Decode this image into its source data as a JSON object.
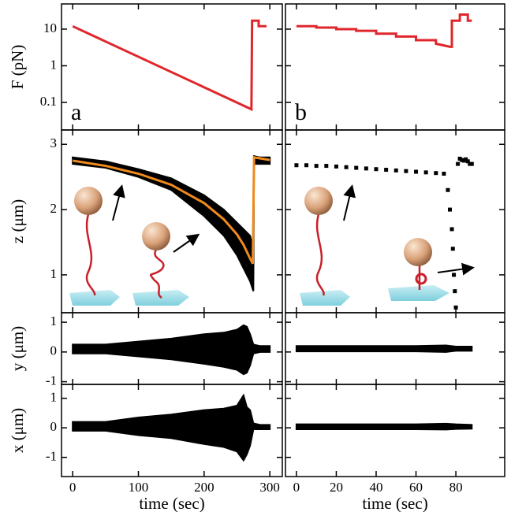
{
  "chart_data": [
    {
      "type": "line",
      "ylabel": "F (pN)",
      "panel_label": "a",
      "log_y": true,
      "xlim": [
        -17,
        319
      ],
      "ylim": [
        0.0177,
        48.7
      ],
      "yticks": [
        0.1,
        1,
        10
      ],
      "series": [
        {
          "kind": "line",
          "color": "#e0262b",
          "x": [
            0,
            272,
            273,
            283,
            283,
            295
          ],
          "values": [
            12,
            0.065,
            17,
            17,
            12,
            12
          ]
        }
      ]
    },
    {
      "type": "line",
      "panel_label": "b",
      "log_y": true,
      "xlim": [
        -5.5,
        104.5
      ],
      "ylim": [
        0.0177,
        48.7
      ],
      "series": [
        {
          "kind": "line",
          "color": "#e0262b",
          "x": [
            0,
            10,
            10,
            20,
            20,
            30,
            30,
            40,
            40,
            50,
            50,
            60,
            60,
            70,
            70,
            77,
            78,
            78,
            82,
            82,
            86,
            86,
            88
          ],
          "values": [
            12,
            12,
            11,
            11,
            10,
            10,
            9,
            9,
            7.5,
            7.5,
            6.3,
            6.3,
            5,
            5,
            4,
            3.3,
            3.3,
            17,
            17,
            25,
            25,
            17,
            17
          ]
        }
      ]
    },
    {
      "type": "line",
      "ylabel": "z (μm)",
      "xlim": [
        -17,
        319
      ],
      "ylim": [
        0.42,
        3.22
      ],
      "yticks": [
        1,
        2,
        3
      ],
      "series": [
        {
          "kind": "band",
          "color": "#000000",
          "x": [
            0,
            50,
            100,
            150,
            200,
            230,
            250,
            260,
            270,
            275,
            276,
            285,
            300
          ],
          "values": [
            2.8,
            2.74,
            2.62,
            2.48,
            2.22,
            2.0,
            1.8,
            1.7,
            1.6,
            1.4,
            2.82,
            2.8,
            2.8
          ],
          "lower": [
            2.7,
            2.64,
            2.5,
            2.3,
            1.9,
            1.6,
            1.3,
            1.1,
            0.9,
            0.75,
            2.7,
            2.7,
            2.7
          ]
        },
        {
          "kind": "line",
          "color": "#f08a1c",
          "x": [
            0,
            50,
            100,
            150,
            200,
            230,
            250,
            260,
            270,
            274,
            276,
            300
          ],
          "values": [
            2.75,
            2.67,
            2.55,
            2.38,
            2.1,
            1.85,
            1.62,
            1.46,
            1.25,
            1.17,
            2.8,
            2.76
          ]
        }
      ]
    },
    {
      "type": "line",
      "xlim": [
        -5.5,
        104.5
      ],
      "ylim": [
        0.42,
        3.22
      ],
      "series": [
        {
          "kind": "dots",
          "color": "#000000",
          "x": [
            0,
            5,
            10,
            15,
            20,
            25,
            30,
            35,
            40,
            45,
            50,
            55,
            60,
            65,
            70,
            74,
            76,
            77,
            78,
            78.5,
            79,
            79.5,
            80,
            81,
            82,
            83,
            84,
            85,
            86,
            87,
            88
          ],
          "values": [
            2.68,
            2.68,
            2.67,
            2.67,
            2.66,
            2.65,
            2.64,
            2.63,
            2.62,
            2.61,
            2.6,
            2.59,
            2.58,
            2.57,
            2.56,
            2.55,
            2.3,
            2.0,
            1.7,
            1.4,
            1.0,
            0.75,
            0.5,
            2.7,
            2.78,
            2.76,
            2.75,
            2.77,
            2.74,
            2.7,
            2.7
          ]
        }
      ]
    },
    {
      "type": "line",
      "ylabel": "y (μm)",
      "xlim": [
        -17,
        319
      ],
      "ylim": [
        -1.09,
        1.32
      ],
      "yticks": [
        -1,
        0,
        1
      ],
      "series": [
        {
          "kind": "band",
          "color": "#000000",
          "x": [
            0,
            50,
            100,
            150,
            200,
            230,
            250,
            260,
            265,
            270,
            275,
            285,
            300
          ],
          "values": [
            0.25,
            0.25,
            0.35,
            0.45,
            0.6,
            0.65,
            0.75,
            0.9,
            0.85,
            0.6,
            0.25,
            0.2,
            0.2
          ],
          "lower": [
            -0.05,
            -0.05,
            -0.15,
            -0.25,
            -0.4,
            -0.5,
            -0.6,
            -0.75,
            -0.7,
            -0.45,
            -0.05,
            0,
            0
          ]
        }
      ]
    },
    {
      "type": "line",
      "xlim": [
        -5.5,
        104.5
      ],
      "ylim": [
        -1.09,
        1.32
      ],
      "series": [
        {
          "kind": "band",
          "color": "#000000",
          "x": [
            0,
            20,
            40,
            60,
            75,
            80,
            88
          ],
          "values": [
            0.2,
            0.2,
            0.2,
            0.2,
            0.22,
            0.18,
            0.18
          ],
          "lower": [
            0.02,
            0.02,
            0.02,
            0.02,
            0.0,
            0.04,
            0.04
          ]
        }
      ]
    },
    {
      "type": "line",
      "ylabel": "x (μm)",
      "xlabel": "time (sec)",
      "xlim": [
        -17,
        319
      ],
      "ylim": [
        -1.65,
        1.47
      ],
      "yticks": [
        -1,
        0,
        1
      ],
      "xticks": [
        0,
        100,
        200,
        300
      ],
      "series": [
        {
          "kind": "band",
          "color": "#000000",
          "x": [
            0,
            50,
            100,
            150,
            200,
            230,
            250,
            260,
            265,
            270,
            275,
            285,
            300
          ],
          "values": [
            0.2,
            0.2,
            0.35,
            0.45,
            0.6,
            0.65,
            0.75,
            1.1,
            0.7,
            0.6,
            0.15,
            0.1,
            0.1
          ],
          "lower": [
            -0.1,
            -0.1,
            -0.25,
            -0.35,
            -0.55,
            -0.65,
            -0.8,
            -1.1,
            -0.9,
            -0.6,
            -0.05,
            -0.05,
            -0.05
          ]
        }
      ]
    },
    {
      "type": "line",
      "xlabel": "time (sec)",
      "xlim": [
        -5.5,
        104.5
      ],
      "ylim": [
        -1.65,
        1.47
      ],
      "xticks": [
        0,
        20,
        40,
        60,
        80
      ],
      "series": [
        {
          "kind": "band",
          "color": "#000000",
          "x": [
            0,
            20,
            40,
            60,
            75,
            80,
            88
          ],
          "values": [
            0.12,
            0.12,
            0.12,
            0.12,
            0.14,
            0.12,
            0.1
          ],
          "lower": [
            -0.05,
            -0.05,
            -0.05,
            -0.05,
            -0.06,
            -0.04,
            -0.03
          ]
        }
      ]
    }
  ]
}
